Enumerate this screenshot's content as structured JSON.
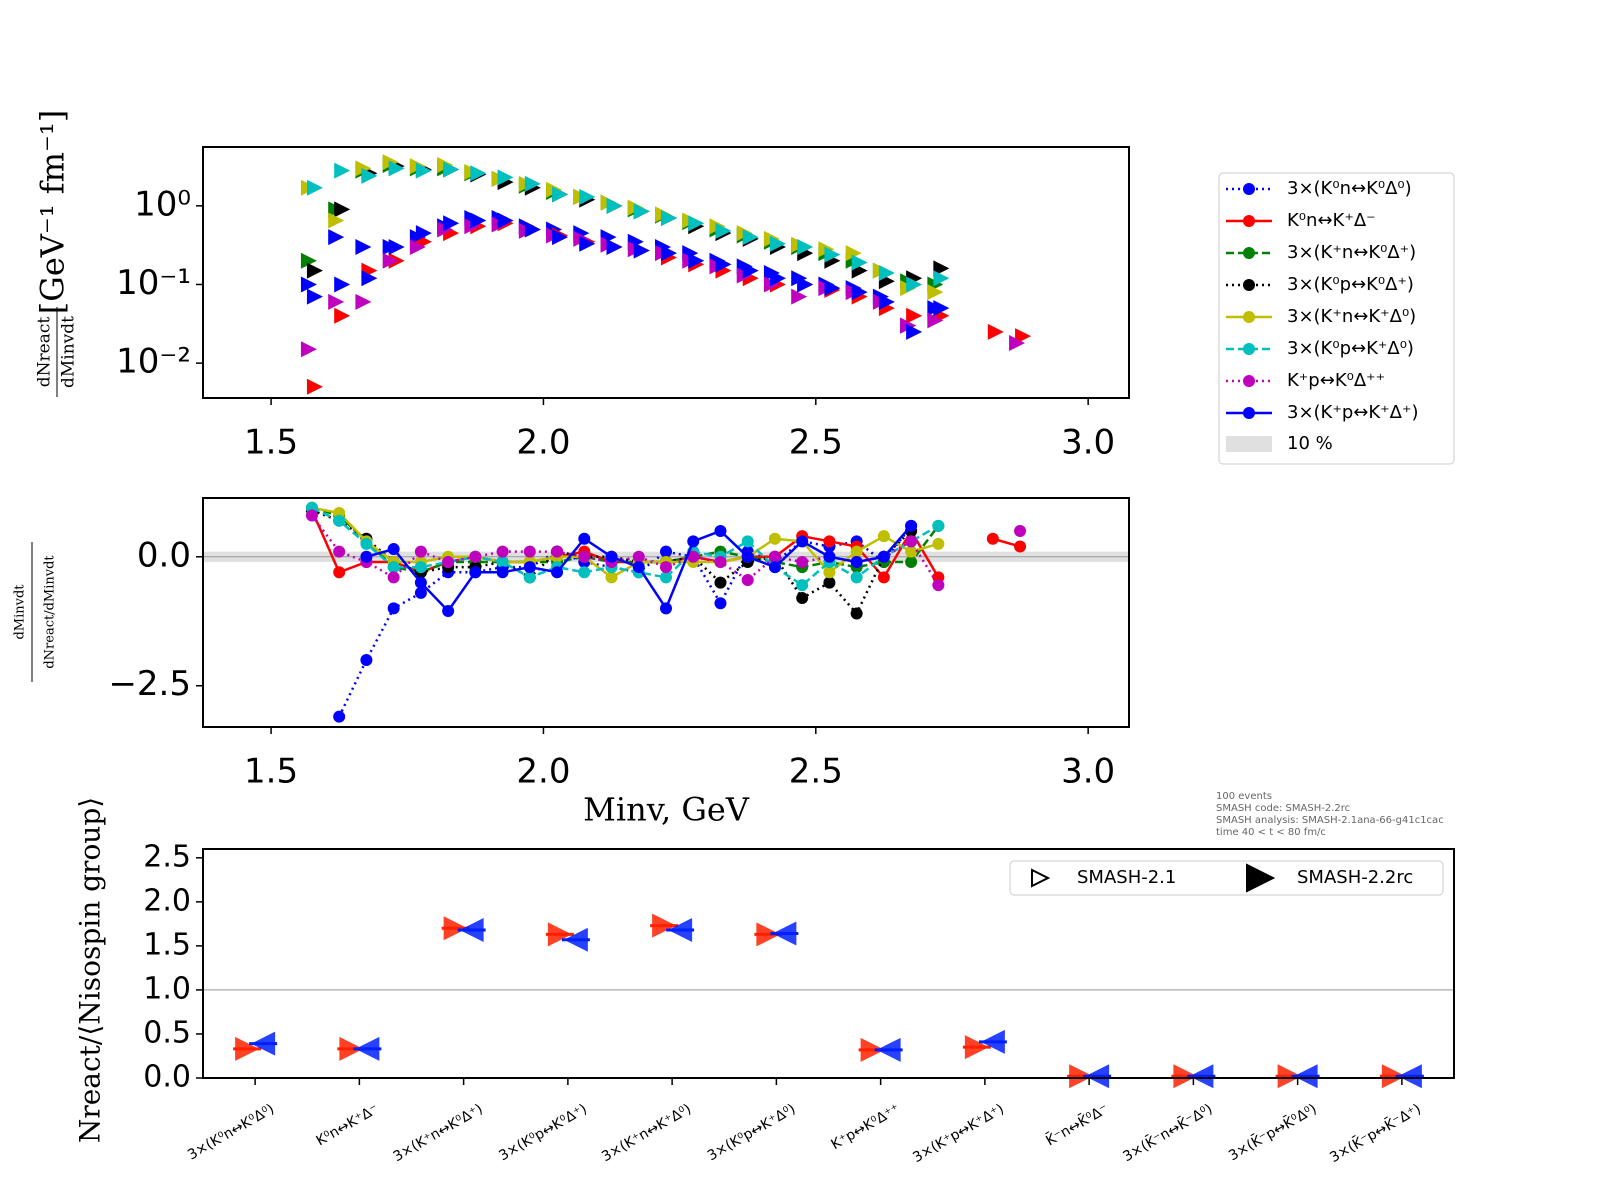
{
  "chart_data": [
    {
      "type": "scatter",
      "log_y": true,
      "ylabel_num": "dNreact",
      "ylabel_den": "dMinvdt",
      "ylabel_unit": "[GeV⁻¹ fm⁻¹]",
      "x": [
        1.575,
        1.625,
        1.675,
        1.725,
        1.775,
        1.825,
        1.875,
        1.925,
        1.975,
        2.025,
        2.075,
        2.125,
        2.175,
        2.225,
        2.275,
        2.325,
        2.375,
        2.425,
        2.475,
        2.525,
        2.575,
        2.625,
        2.675,
        2.725,
        2.775,
        2.825,
        2.875
      ],
      "xlim": [
        1.375,
        3.075
      ],
      "xticks": [
        1.5,
        {
          "value": 2,
          "label": "2.0"
        },
        2.5,
        {
          "value": 3,
          "label": "3.0"
        }
      ],
      "ylim": [
        0.0036,
        5.6
      ],
      "yticks": [
        {
          "value": 0.01,
          "label": "10⁻²"
        },
        {
          "value": 0.1,
          "label": "10⁻¹"
        },
        {
          "value": 1,
          "label": "10⁰"
        }
      ],
      "legend": "outside-right",
      "series": [
        {
          "name": "3×(K⁰n↔K⁰Δ⁰)",
          "color": "#0000ff",
          "linestyle": "dotted",
          "values": [
            0.1,
            0.4,
            0.3,
            0.3,
            0.4,
            0.55,
            0.7,
            0.7,
            0.55,
            0.5,
            0.45,
            0.4,
            0.35,
            0.3,
            0.25,
            0.2,
            0.17,
            0.14,
            0.12,
            0.1,
            0.09,
            0.07,
            0.03,
            0.05,
            null,
            null,
            null
          ]
        },
        {
          "name": "K⁰n↔K⁺Δ⁻",
          "color": "#ff0000",
          "linestyle": "solid",
          "values": [
            0.005,
            0.04,
            0.15,
            0.2,
            0.35,
            0.45,
            0.55,
            0.6,
            0.5,
            0.42,
            0.35,
            0.3,
            0.27,
            0.22,
            0.18,
            0.15,
            0.12,
            0.1,
            0.1,
            0.085,
            0.07,
            0.05,
            0.04,
            0.04,
            null,
            0.025,
            0.022
          ]
        },
        {
          "name": "3×(K⁺n↔K⁰Δ⁺)",
          "color": "#008000",
          "linestyle": "dashed",
          "values": [
            0.2,
            0.9,
            2.8,
            3.3,
            3.0,
            3.0,
            2.6,
            2.2,
            1.8,
            1.5,
            1.3,
            1.1,
            0.9,
            0.75,
            0.62,
            0.5,
            0.42,
            0.35,
            0.3,
            0.25,
            0.2,
            0.15,
            0.11,
            0.1,
            null,
            null,
            null
          ]
        },
        {
          "name": "3×(K⁰p↔K⁰Δ⁺)",
          "color": "#000000",
          "linestyle": "dotted",
          "values": [
            0.15,
            0.9,
            2.6,
            3.2,
            2.9,
            2.9,
            2.5,
            2.0,
            1.7,
            1.4,
            1.2,
            1.0,
            0.85,
            0.7,
            0.55,
            0.45,
            0.38,
            0.3,
            0.25,
            0.2,
            0.15,
            0.11,
            0.12,
            0.16,
            null,
            null,
            null
          ]
        },
        {
          "name": "3×(K⁺n↔K⁺Δ⁰)",
          "color": "#bfbf00",
          "linestyle": "solid",
          "values": [
            1.7,
            0.65,
            3.0,
            3.6,
            3.2,
            3.3,
            2.7,
            2.2,
            1.9,
            1.6,
            1.3,
            1.1,
            0.95,
            0.78,
            0.65,
            0.55,
            0.45,
            0.38,
            0.32,
            0.28,
            0.25,
            0.15,
            0.09,
            0.08,
            null,
            null,
            null
          ]
        },
        {
          "name": "3×(K⁰p↔K⁺Δ⁰)",
          "color": "#00bfbf",
          "linestyle": "dashed",
          "values": [
            1.7,
            2.8,
            2.4,
            3.0,
            2.8,
            2.9,
            2.6,
            2.3,
            1.9,
            1.4,
            1.3,
            1.0,
            0.85,
            0.7,
            0.6,
            0.48,
            0.4,
            0.33,
            0.3,
            0.24,
            0.19,
            0.14,
            0.1,
            0.12,
            null,
            null,
            null
          ]
        },
        {
          "name": "K⁺p↔K⁰Δ⁺⁺",
          "color": "#bf00bf",
          "linestyle": "dotted",
          "values": [
            0.015,
            0.06,
            0.06,
            0.2,
            0.3,
            0.5,
            0.55,
            0.58,
            0.48,
            0.42,
            0.38,
            0.32,
            0.28,
            0.25,
            0.2,
            0.17,
            0.13,
            0.1,
            0.07,
            0.09,
            0.08,
            0.06,
            0.03,
            0.035,
            null,
            null,
            0.018
          ]
        },
        {
          "name": "3×(K⁺p↔K⁺Δ⁺)",
          "color": "#0000ff",
          "linestyle": "solid",
          "values": [
            0.07,
            0.1,
            0.12,
            0.3,
            0.45,
            0.6,
            0.65,
            0.65,
            0.5,
            0.4,
            0.33,
            0.3,
            0.27,
            0.25,
            0.2,
            0.18,
            0.15,
            0.12,
            0.1,
            0.09,
            0.08,
            0.06,
            0.025,
            0.05,
            null,
            null,
            null
          ]
        }
      ]
    },
    {
      "type": "line",
      "ylabel_num": "dMinvdt",
      "ylabel_den": "dNreact/dMinvdt",
      "xlabel": "Minv, GeV",
      "x": [
        1.575,
        1.625,
        1.675,
        1.725,
        1.775,
        1.825,
        1.875,
        1.925,
        1.975,
        2.025,
        2.075,
        2.125,
        2.175,
        2.225,
        2.275,
        2.325,
        2.375,
        2.425,
        2.475,
        2.525,
        2.575,
        2.625,
        2.675,
        2.725,
        2.775,
        2.825,
        2.875
      ],
      "xlim": [
        1.375,
        3.075
      ],
      "xticks": [
        1.5,
        {
          "value": 2,
          "label": "2.0"
        },
        2.5,
        {
          "value": 3,
          "label": "3.0"
        }
      ],
      "ylim": [
        -3.3,
        1.14
      ],
      "yticks": [
        {
          "value": -2.5,
          "label": "−2.5"
        },
        {
          "value": 0,
          "label": "0.0"
        }
      ],
      "hline": 0,
      "band": {
        "label": "10 %",
        "range": [
          -0.1,
          0.1
        ],
        "color": "#e0e0e0"
      },
      "series": [
        {
          "color": "#0000ff",
          "linestyle": "dotted",
          "values": [
            null,
            -3.1,
            -2.0,
            -1.0,
            -0.7,
            -0.3,
            -0.3,
            -0.2,
            -0.2,
            0.1,
            -0.1,
            -0.2,
            -0.3,
            0.1,
            0.0,
            -0.9,
            0.1,
            -0.1,
            0.3,
            0.2,
            0.3,
            -0.1,
            0.6,
            null,
            null,
            null,
            null
          ]
        },
        {
          "color": "#ff0000",
          "linestyle": "solid",
          "values": [
            0.9,
            -0.3,
            -0.1,
            -0.1,
            -0.3,
            -0.1,
            0.0,
            -0.1,
            -0.1,
            0.0,
            0.1,
            -0.1,
            -0.1,
            -0.1,
            0.0,
            -0.1,
            0.0,
            0.0,
            0.4,
            0.3,
            0.2,
            -0.4,
            0.5,
            -0.4,
            null,
            0.35,
            0.2
          ]
        },
        {
          "color": "#008000",
          "linestyle": "dashed",
          "values": [
            0.95,
            0.8,
            0.3,
            -0.2,
            -0.3,
            -0.1,
            -0.1,
            -0.1,
            -0.1,
            -0.1,
            0.0,
            -0.1,
            -0.1,
            -0.1,
            0.0,
            0.1,
            0.0,
            -0.1,
            -0.2,
            -0.1,
            -0.2,
            -0.1,
            -0.1,
            0.6,
            null,
            null,
            null
          ]
        },
        {
          "color": "#000000",
          "linestyle": "dotted",
          "values": [
            0.9,
            0.7,
            0.35,
            -0.1,
            -0.3,
            -0.2,
            -0.2,
            -0.1,
            -0.4,
            0.1,
            0.0,
            0.0,
            -0.1,
            -0.1,
            0.0,
            -0.5,
            -0.1,
            0.0,
            -0.8,
            -0.5,
            -1.1,
            0.0,
            0.5,
            null,
            null,
            null,
            null
          ]
        },
        {
          "color": "#bfbf00",
          "linestyle": "solid",
          "values": [
            0.95,
            0.85,
            0.3,
            -0.1,
            -0.1,
            0.0,
            0.0,
            -0.1,
            -0.1,
            0.0,
            0.0,
            -0.4,
            -0.1,
            -0.1,
            -0.1,
            -0.1,
            0.0,
            0.35,
            0.3,
            -0.3,
            0.1,
            0.4,
            0.1,
            0.25,
            null,
            null,
            null
          ]
        },
        {
          "color": "#00bfbf",
          "linestyle": "dashed",
          "values": [
            0.95,
            0.7,
            0.25,
            -0.2,
            -0.2,
            -0.1,
            0.0,
            -0.1,
            -0.4,
            -0.2,
            -0.3,
            -0.2,
            -0.3,
            -0.4,
            0.1,
            0.0,
            0.3,
            -0.2,
            -0.55,
            -0.1,
            -0.4,
            0.0,
            0.3,
            0.6,
            null,
            null,
            null
          ]
        },
        {
          "color": "#bf00bf",
          "linestyle": "dotted",
          "values": [
            0.8,
            0.1,
            -0.1,
            -0.4,
            0.1,
            -0.1,
            0.0,
            0.1,
            0.1,
            0.1,
            0.0,
            -0.1,
            0.0,
            -0.2,
            0.0,
            -0.1,
            -0.45,
            0.0,
            -0.1,
            0.0,
            -0.1,
            0.0,
            0.3,
            -0.55,
            null,
            null,
            0.5
          ]
        },
        {
          "color": "#0000ff",
          "linestyle": "solid",
          "values": [
            null,
            null,
            0.0,
            0.15,
            -0.5,
            -1.05,
            -0.3,
            -0.3,
            -0.2,
            -0.3,
            0.35,
            0.0,
            -0.2,
            -1.0,
            0.3,
            0.5,
            0.0,
            -0.2,
            0.3,
            0.0,
            -0.1,
            0.0,
            0.6,
            null,
            null,
            null,
            null
          ]
        }
      ]
    },
    {
      "type": "dot",
      "ylabel": "Nreact/⟨Nisospin group⟩",
      "categories": [
        "3×(K⁰n↔K⁰Δ⁰)",
        "K⁰n↔K⁺Δ⁻",
        "3×(K⁺n↔K⁰Δ⁺)",
        "3×(K⁰p↔K⁰Δ⁺)",
        "3×(K⁺n↔K⁺Δ⁰)",
        "3×(K⁰p↔K⁺Δ⁰)",
        "K⁺p↔K⁰Δ⁺⁺",
        "3×(K⁺p↔K⁺Δ⁺)",
        "K̄⁻n↔K̄⁰Δ⁻",
        "3×(K̄⁻n↔K̄⁻Δ⁰)",
        "3×(K̄⁻p↔K̄⁰Δ⁰)",
        "3×(K̄⁻p↔K̄⁻Δ⁺)"
      ],
      "ylim": [
        0,
        2.6
      ],
      "yticks": [
        {
          "value": 0,
          "label": "0.0"
        },
        0.5,
        {
          "value": 1,
          "label": "1.0"
        },
        1.5,
        {
          "value": 2,
          "label": "2.0"
        },
        2.5
      ],
      "hline": 1,
      "legend": "upper-right",
      "series": [
        {
          "name": "SMASH-2.1",
          "color": "#ff2000",
          "values": [
            0.33,
            0.33,
            1.7,
            1.63,
            1.73,
            1.63,
            0.32,
            0.35,
            0.02,
            0.02,
            0.02,
            0.02
          ]
        },
        {
          "name": "SMASH-2.2rc",
          "color": "#0020ff",
          "values": [
            0.39,
            0.33,
            1.68,
            1.57,
            1.68,
            1.64,
            0.32,
            0.41,
            0.02,
            0.02,
            0.02,
            0.02
          ]
        }
      ]
    }
  ],
  "annotation": [
    "100 events",
    "SMASH code:      SMASH-2.2rc",
    "SMASH analysis: SMASH-2.1ana-66-g41c1cac",
    "time 40 < t < 80 fm/c"
  ]
}
